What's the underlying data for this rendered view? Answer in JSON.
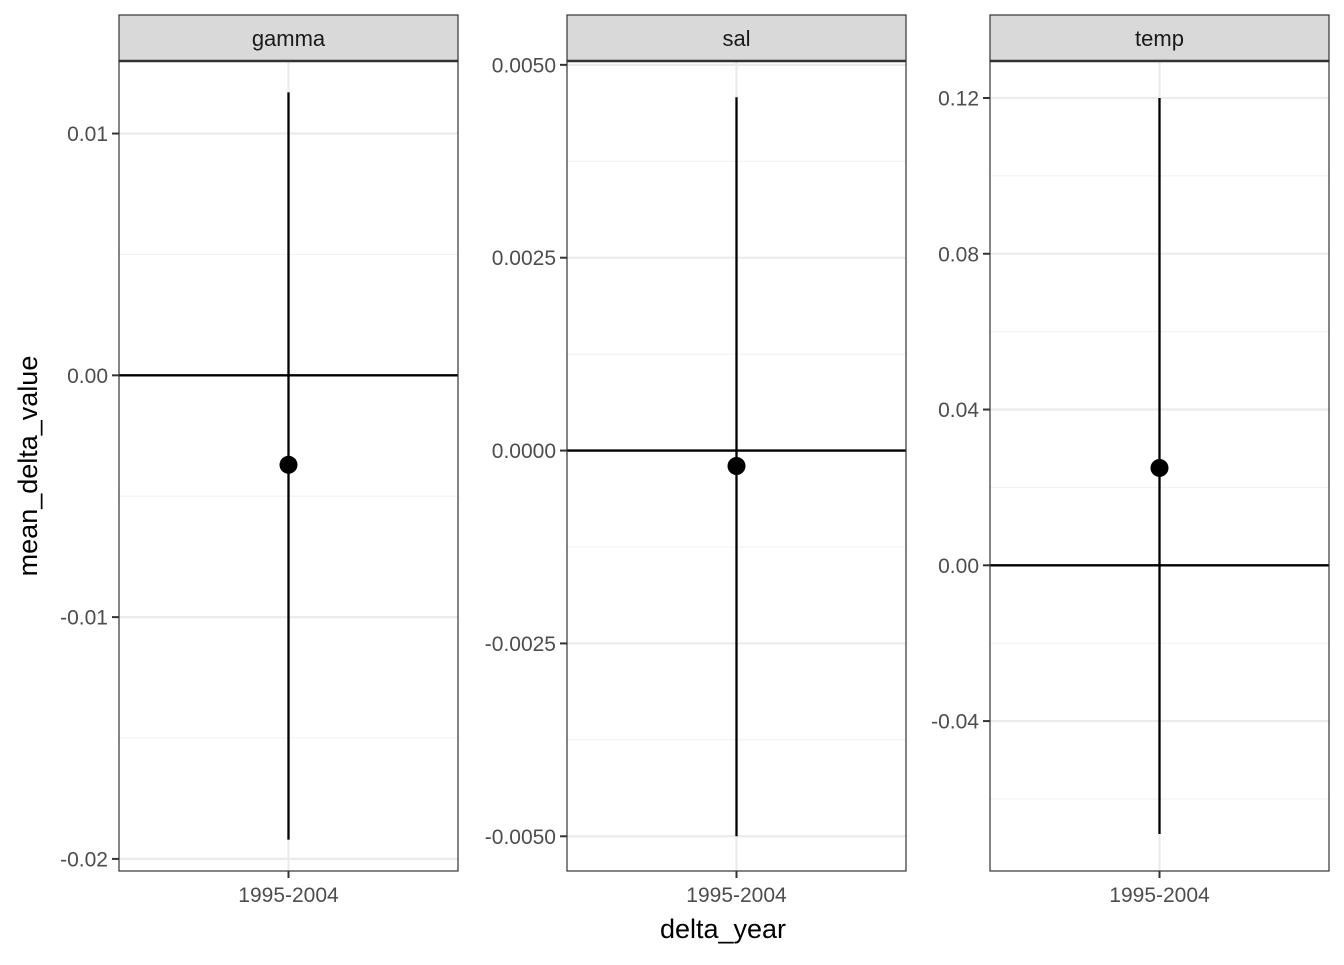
{
  "chart_data": {
    "type": "errorbar",
    "xlabel": "delta_year",
    "ylabel": "mean_delta_value",
    "reference_line": 0,
    "grid": true,
    "panels": [
      {
        "name": "gamma",
        "x": "1995-2004",
        "mean": -0.0037,
        "lower": -0.0192,
        "upper": 0.0117,
        "ylim": [
          -0.0205,
          0.013
        ],
        "ticks": [
          0.01,
          0.0,
          -0.01,
          -0.02
        ],
        "tick_labels": [
          "0.01",
          "0.00",
          "-0.01",
          "-0.02"
        ]
      },
      {
        "name": "sal",
        "x": "1995-2004",
        "mean": -0.0002,
        "lower": -0.005,
        "upper": 0.00458,
        "ylim": [
          -0.00545,
          0.00505
        ],
        "ticks": [
          0.005,
          0.0025,
          0.0,
          -0.0025,
          -0.005
        ],
        "tick_labels": [
          "0.0050",
          "0.0025",
          "0.0000",
          "-0.0025",
          "-0.0050"
        ]
      },
      {
        "name": "temp",
        "x": "1995-2004",
        "mean": 0.025,
        "lower": -0.069,
        "upper": 0.12,
        "ylim": [
          -0.0785,
          0.1295
        ],
        "ticks": [
          0.12,
          0.08,
          0.04,
          0.0,
          -0.04
        ],
        "tick_labels": [
          "0.12",
          "0.08",
          "0.04",
          "0.00",
          "-0.04"
        ]
      }
    ]
  }
}
